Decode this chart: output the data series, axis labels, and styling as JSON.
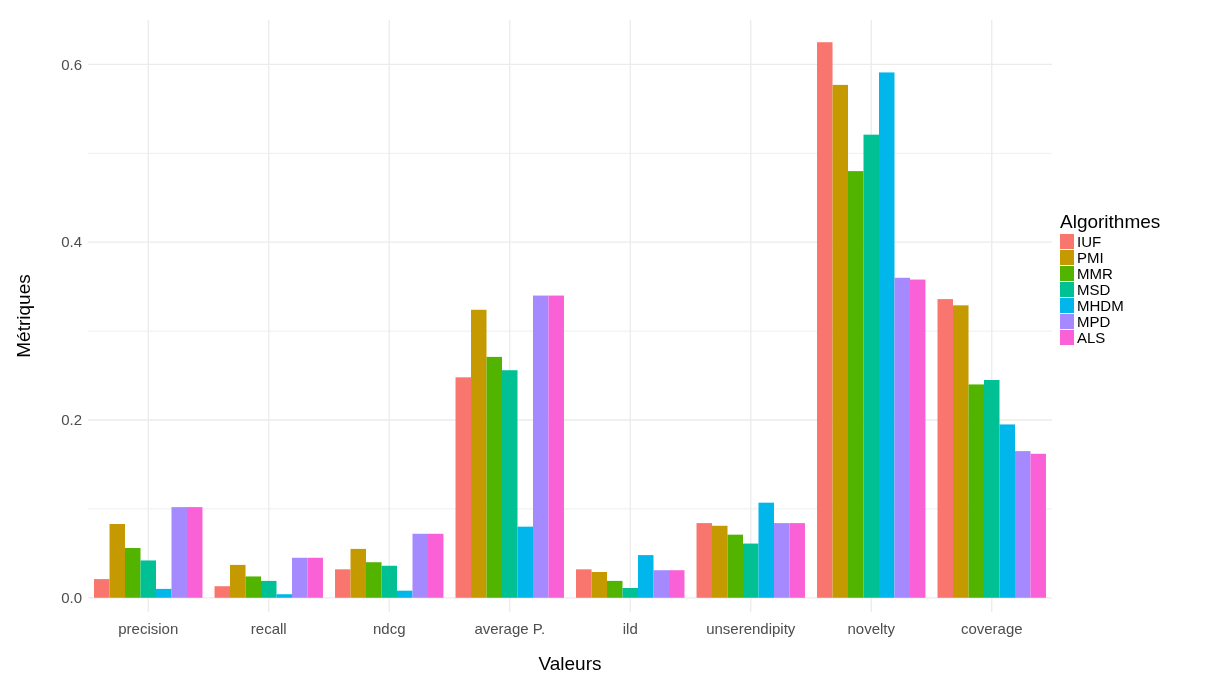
{
  "chart_data": {
    "type": "bar",
    "xlabel": "Valeurs",
    "ylabel": "Métriques",
    "legend_title": "Algorithmes",
    "legend": "right",
    "grid": true,
    "categories": [
      "precision",
      "recall",
      "ndcg",
      "average P.",
      "ild",
      "unserendipity",
      "novelty",
      "coverage"
    ],
    "ylim": [
      -0.016,
      0.65
    ],
    "yticks": [
      {
        "value": 0,
        "label": "0.0"
      },
      {
        "value": 0.1,
        "label": null
      },
      0.2,
      {
        "value": 0.3,
        "label": null
      },
      0.4,
      {
        "value": 0.5,
        "label": null
      },
      0.6
    ],
    "series": [
      {
        "name": "IUF",
        "color": "#f8766d",
        "values": [
          0.021,
          0.013,
          0.032,
          0.248,
          0.032,
          0.084,
          0.625,
          0.336
        ]
      },
      {
        "name": "PMI",
        "color": "#c49a00",
        "values": [
          0.083,
          0.037,
          0.055,
          0.324,
          0.029,
          0.081,
          0.577,
          0.329
        ]
      },
      {
        "name": "MMR",
        "color": "#53b400",
        "values": [
          0.056,
          0.024,
          0.04,
          0.271,
          0.019,
          0.071,
          0.48,
          0.24
        ]
      },
      {
        "name": "MSD",
        "color": "#00c094",
        "values": [
          0.042,
          0.019,
          0.036,
          0.256,
          0.011,
          0.061,
          0.521,
          0.245
        ]
      },
      {
        "name": "MHDM",
        "color": "#00b6eb",
        "values": [
          0.01,
          0.004,
          0.008,
          0.08,
          0.048,
          0.107,
          0.591,
          0.195
        ]
      },
      {
        "name": "MPD",
        "color": "#a58aff",
        "values": [
          0.102,
          0.045,
          0.072,
          0.34,
          0.031,
          0.084,
          0.36,
          0.165
        ]
      },
      {
        "name": "ALS",
        "color": "#fb61d7",
        "values": [
          0.102,
          0.045,
          0.072,
          0.34,
          0.031,
          0.084,
          0.358,
          0.162
        ]
      }
    ]
  }
}
